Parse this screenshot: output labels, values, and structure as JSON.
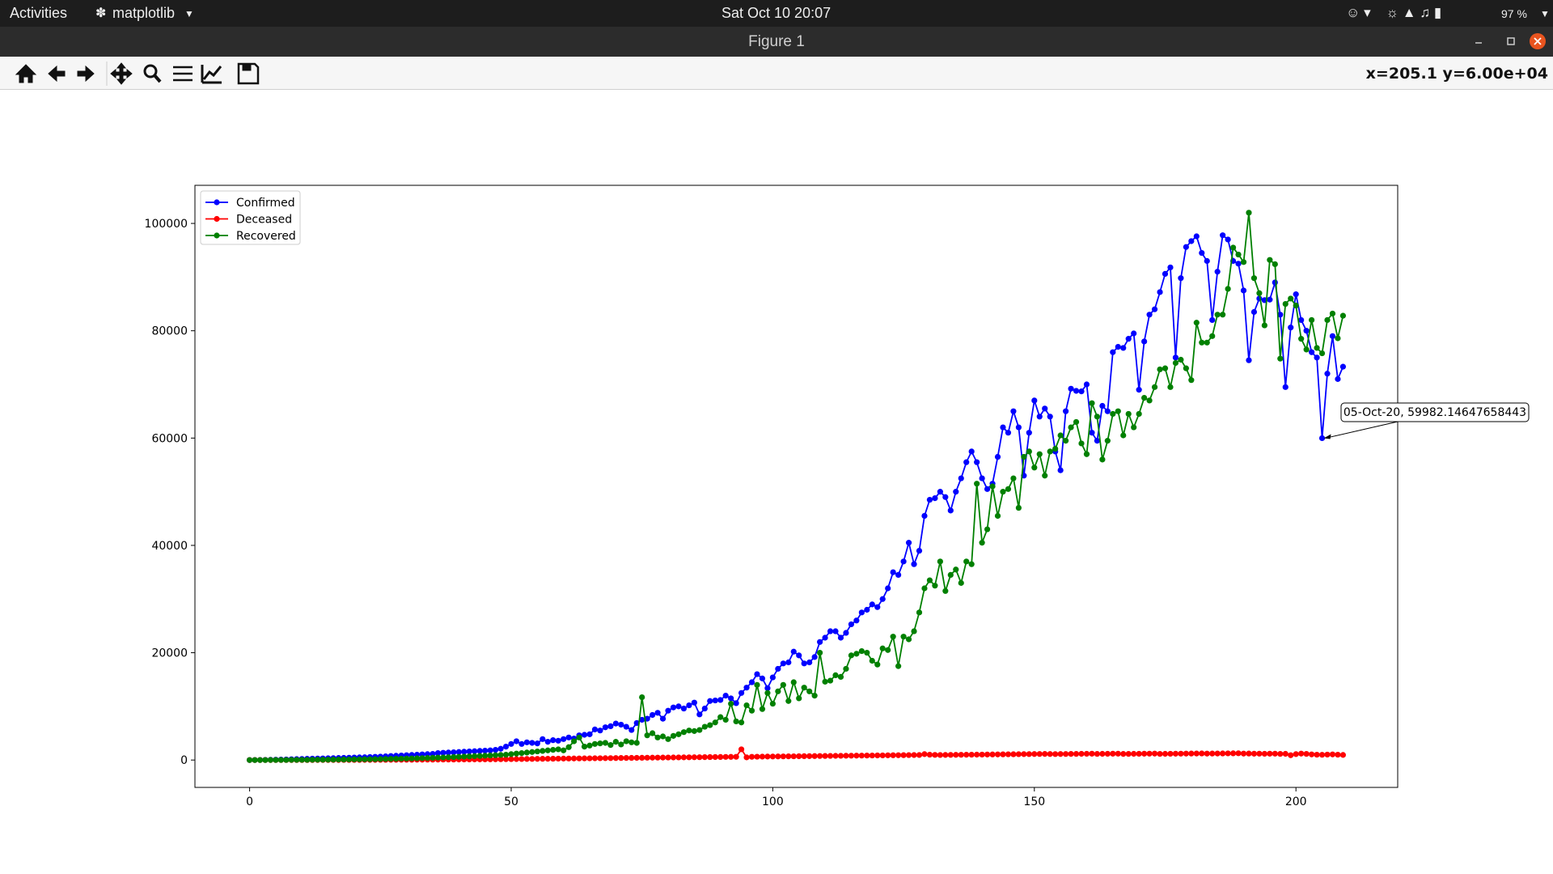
{
  "ui": {
    "activities": "Activities",
    "app_menu": "matplotlib",
    "clock": "Sat Oct 10  20:07",
    "battery": "97 %",
    "window_title": "Figure 1",
    "coordinates": "x=205.1 y=6.00e+04"
  },
  "chart_data": {
    "type": "line",
    "legend": "upper left",
    "grid": false,
    "marker": "o",
    "xlim": [
      -10.45,
      219.45
    ],
    "xticks": [
      0,
      50,
      100,
      150,
      200
    ],
    "ylim": [
      -5100,
      107100
    ],
    "yticks": [
      0,
      20000,
      40000,
      60000,
      80000,
      100000
    ],
    "x": [
      0,
      1,
      2,
      3,
      4,
      5,
      6,
      7,
      8,
      9,
      10,
      11,
      12,
      13,
      14,
      15,
      16,
      17,
      18,
      19,
      20,
      21,
      22,
      23,
      24,
      25,
      26,
      27,
      28,
      29,
      30,
      31,
      32,
      33,
      34,
      35,
      36,
      37,
      38,
      39,
      40,
      41,
      42,
      43,
      44,
      45,
      46,
      47,
      48,
      49,
      50,
      51,
      52,
      53,
      54,
      55,
      56,
      57,
      58,
      59,
      60,
      61,
      62,
      63,
      64,
      65,
      66,
      67,
      68,
      69,
      70,
      71,
      72,
      73,
      74,
      75,
      76,
      77,
      78,
      79,
      80,
      81,
      82,
      83,
      84,
      85,
      86,
      87,
      88,
      89,
      90,
      91,
      92,
      93,
      94,
      95,
      96,
      97,
      98,
      99,
      100,
      101,
      102,
      103,
      104,
      105,
      106,
      107,
      108,
      109,
      110,
      111,
      112,
      113,
      114,
      115,
      116,
      117,
      118,
      119,
      120,
      121,
      122,
      123,
      124,
      125,
      126,
      127,
      128,
      129,
      130,
      131,
      132,
      133,
      134,
      135,
      136,
      137,
      138,
      139,
      140,
      141,
      142,
      143,
      144,
      145,
      146,
      147,
      148,
      149,
      150,
      151,
      152,
      153,
      154,
      155,
      156,
      157,
      158,
      159,
      160,
      161,
      162,
      163,
      164,
      165,
      166,
      167,
      168,
      169,
      170,
      171,
      172,
      173,
      174,
      175,
      176,
      177,
      178,
      179,
      180,
      181,
      182,
      183,
      184,
      185,
      186,
      187,
      188,
      189,
      190,
      191,
      192,
      193,
      194,
      195,
      196,
      197,
      198,
      199,
      200,
      201,
      202,
      203,
      204,
      205,
      206,
      207,
      208,
      209
    ],
    "series": [
      {
        "name": "Confirmed",
        "color": "#0000ff",
        "values": [
          0,
          10,
          20,
          30,
          50,
          70,
          90,
          110,
          150,
          180,
          200,
          230,
          260,
          280,
          300,
          330,
          350,
          380,
          400,
          430,
          470,
          500,
          520,
          560,
          600,
          640,
          700,
          750,
          800,
          850,
          900,
          950,
          1000,
          1050,
          1100,
          1150,
          1300,
          1350,
          1400,
          1450,
          1500,
          1550,
          1600,
          1650,
          1700,
          1750,
          1800,
          1900,
          2100,
          2500,
          3000,
          3500,
          3000,
          3300,
          3200,
          3100,
          3900,
          3400,
          3700,
          3600,
          3900,
          4200,
          4000,
          4600,
          4700,
          4800,
          5700,
          5500,
          6100,
          6300,
          6800,
          6600,
          6200,
          5600,
          6900,
          7500,
          7700,
          8400,
          8800,
          7700,
          9200,
          9800,
          10000,
          9600,
          10200,
          10700,
          8500,
          9600,
          11000,
          11100,
          11200,
          12000,
          11500,
          10600,
          12500,
          13500,
          14500,
          16000,
          15200,
          13400,
          15400,
          17000,
          18000,
          18200,
          20200,
          19500,
          18000,
          18200,
          19200,
          22000,
          22800,
          24000,
          24000,
          22800,
          23700,
          25300,
          26000,
          27500,
          28000,
          29000,
          28500,
          30000,
          32000,
          35000,
          34500,
          37000,
          40500,
          36500,
          39000,
          45500,
          48500,
          48800,
          50000,
          49000,
          46500,
          50000,
          52500,
          55500,
          57500,
          55500,
          52500,
          50500,
          51500,
          56500,
          62000,
          61000,
          65000,
          62000,
          53000,
          61000,
          67000,
          64000,
          65500,
          64000,
          57500,
          54000,
          65000,
          69200,
          68800,
          68700,
          70000,
          61000,
          59500,
          66000,
          65000,
          76000,
          77000,
          76800,
          78500,
          79500,
          69000,
          78000,
          83000,
          84000,
          87200,
          90600,
          91800,
          75000,
          89800,
          95600,
          96700,
          97600,
          94500,
          93000,
          82000,
          91000,
          97800,
          97000,
          93000,
          92500,
          87500,
          74500,
          83500,
          86000,
          85700,
          85800,
          89000,
          83000,
          69500,
          80600,
          86800,
          82000,
          80000,
          76000,
          75000,
          59982.14647658443,
          72000,
          79000,
          71000,
          73300
        ]
      },
      {
        "name": "Deceased",
        "color": "#ff0000",
        "values": [
          0,
          0,
          0,
          0,
          0,
          1,
          1,
          2,
          2,
          3,
          4,
          5,
          6,
          7,
          8,
          10,
          12,
          14,
          16,
          18,
          20,
          23,
          26,
          29,
          32,
          36,
          40,
          44,
          48,
          52,
          56,
          60,
          65,
          70,
          75,
          80,
          85,
          90,
          95,
          100,
          105,
          110,
          115,
          120,
          125,
          130,
          135,
          140,
          150,
          160,
          170,
          180,
          190,
          200,
          210,
          220,
          230,
          240,
          250,
          260,
          270,
          280,
          290,
          300,
          310,
          320,
          330,
          340,
          350,
          360,
          370,
          380,
          390,
          400,
          410,
          420,
          430,
          440,
          450,
          460,
          470,
          480,
          490,
          500,
          510,
          520,
          530,
          540,
          550,
          560,
          570,
          580,
          590,
          600,
          2000,
          500,
          600,
          620,
          640,
          650,
          660,
          670,
          680,
          690,
          700,
          710,
          720,
          730,
          740,
          750,
          760,
          770,
          780,
          790,
          800,
          810,
          820,
          830,
          840,
          850,
          860,
          870,
          880,
          890,
          900,
          910,
          920,
          930,
          940,
          1100,
          1000,
          960,
          940,
          950,
          960,
          970,
          980,
          990,
          1000,
          1010,
          1020,
          1030,
          1040,
          1050,
          1060,
          1070,
          1080,
          1090,
          1100,
          1110,
          1120,
          1130,
          1140,
          1120,
          1110,
          1120,
          1130,
          1140,
          1150,
          1160,
          1170,
          1180,
          1150,
          1160,
          1170,
          1180,
          1190,
          1140,
          1150,
          1160,
          1170,
          1180,
          1190,
          1200,
          1150,
          1160,
          1170,
          1180,
          1190,
          1200,
          1210,
          1220,
          1230,
          1200,
          1210,
          1220,
          1230,
          1240,
          1250,
          1260,
          1200,
          1210,
          1180,
          1190,
          1170,
          1180,
          1190,
          1150,
          1160,
          900,
          1100,
          1200,
          1150,
          1050,
          1000,
          980,
          1020,
          1050,
          1000,
          950
        ]
      },
      {
        "name": "Recovered",
        "color": "#008000",
        "values": [
          0,
          0,
          0,
          0,
          10,
          10,
          20,
          20,
          30,
          30,
          40,
          40,
          50,
          60,
          60,
          70,
          80,
          90,
          100,
          110,
          120,
          130,
          140,
          150,
          160,
          180,
          200,
          220,
          240,
          260,
          280,
          300,
          330,
          360,
          390,
          420,
          450,
          480,
          520,
          560,
          600,
          640,
          680,
          720,
          760,
          800,
          850,
          900,
          950,
          1000,
          1100,
          1200,
          1300,
          1400,
          1500,
          1600,
          1700,
          1800,
          1900,
          2000,
          1800,
          2400,
          3500,
          4200,
          2500,
          2700,
          3000,
          3100,
          3200,
          2800,
          3400,
          2900,
          3500,
          3300,
          3200,
          11700,
          4600,
          5000,
          4200,
          4400,
          3900,
          4500,
          4800,
          5200,
          5500,
          5400,
          5600,
          6200,
          6500,
          7000,
          8000,
          7500,
          10500,
          7200,
          7000,
          10200,
          9200,
          14000,
          9500,
          12500,
          10500,
          12800,
          14000,
          11000,
          14500,
          11500,
          13500,
          12800,
          12000,
          20000,
          14600,
          14800,
          15800,
          15500,
          17000,
          19500,
          19800,
          20300,
          20000,
          18500,
          17800,
          20800,
          20500,
          23000,
          17500,
          23000,
          22500,
          24000,
          27500,
          32000,
          33500,
          32500,
          37000,
          31500,
          34500,
          35500,
          33000,
          37000,
          36500,
          51500,
          40500,
          43000,
          51000,
          45500,
          50000,
          50500,
          52500,
          47000,
          56500,
          57500,
          54500,
          57000,
          53000,
          57500,
          58000,
          60500,
          59500,
          62000,
          63000,
          59000,
          57000,
          66500,
          64000,
          56000,
          59500,
          64500,
          65000,
          60500,
          64500,
          62000,
          64500,
          67500,
          67000,
          69500,
          72800,
          73000,
          69500,
          74000,
          74600,
          73000,
          70800,
          81500,
          77800,
          77800,
          79000,
          83000,
          83000,
          87800,
          95500,
          94200,
          92800,
          102000,
          89800,
          87000,
          81000,
          93200,
          92400,
          74800,
          85000,
          86000,
          84700,
          78500,
          76500,
          82000,
          76800,
          75800,
          82000,
          83200,
          78600,
          82800
        ]
      }
    ],
    "annotations": [
      {
        "text": "05-Oct-20, 59982.14647658443",
        "x": 205,
        "y": 59982.14647658443
      }
    ]
  }
}
